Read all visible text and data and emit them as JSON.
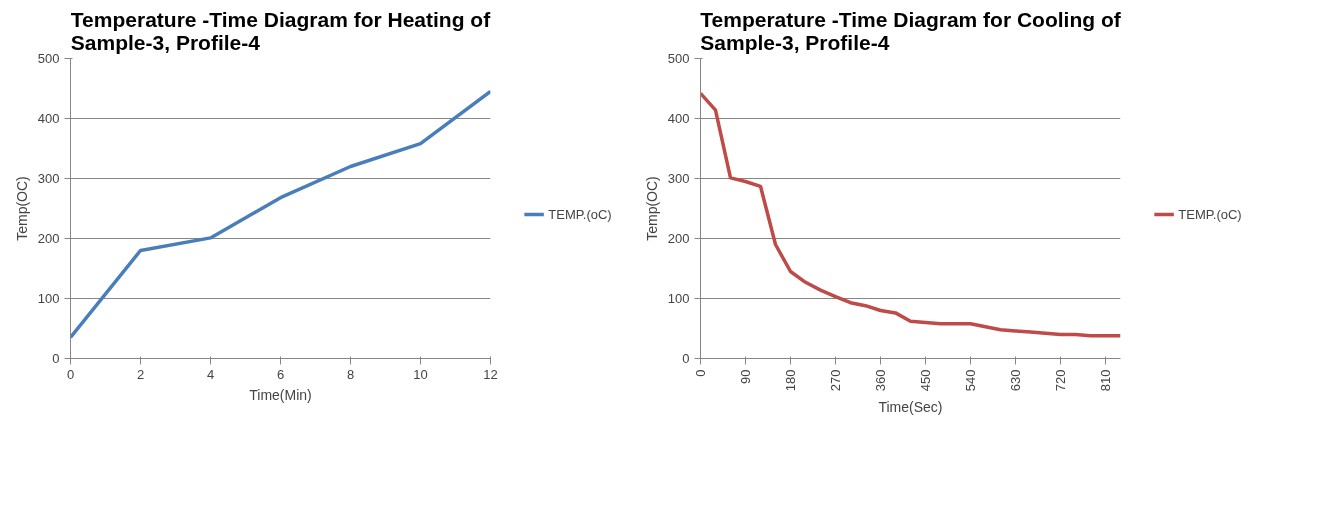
{
  "chart_data": [
    {
      "type": "line",
      "title": "Temperature -Time Diagram for Heating of Sample-3, Profile-4",
      "xlabel": "Time(Min)",
      "ylabel": "Temp(OC)",
      "x": [
        0,
        2,
        4,
        6,
        8,
        10,
        12
      ],
      "series": [
        {
          "name": "TEMP.(oC)",
          "color": "#4a7ebb",
          "values": [
            35,
            180,
            201,
            268,
            320,
            358,
            445
          ]
        }
      ],
      "xlim": [
        0,
        12
      ],
      "xticks": [
        0,
        2,
        4,
        6,
        8,
        10,
        12
      ],
      "ylim": [
        0,
        500
      ],
      "yticks": [
        0,
        100,
        200,
        300,
        400,
        500
      ],
      "grid": "y",
      "legend": "right",
      "marker": "none"
    },
    {
      "type": "line",
      "title": "Temperature -Time Diagram for Cooling of Sample-3, Profile-4",
      "xlabel": "Time(Sec)",
      "ylabel": "Temp(OC)",
      "x": [
        0,
        30,
        60,
        90,
        120,
        150,
        180,
        210,
        240,
        270,
        300,
        330,
        360,
        390,
        420,
        450,
        480,
        510,
        540,
        570,
        600,
        630,
        660,
        690,
        720,
        750,
        780,
        810,
        840
      ],
      "series": [
        {
          "name": "TEMP.(oC)",
          "color": "#be4b48",
          "values": [
            442,
            414,
            301,
            295,
            287,
            190,
            145,
            127,
            114,
            103,
            93,
            88,
            80,
            76,
            62,
            60,
            58,
            58,
            58,
            53,
            48,
            46,
            44,
            42,
            40,
            40,
            38,
            38,
            38
          ]
        }
      ],
      "xlim": [
        0,
        840
      ],
      "xticks": [
        0,
        90,
        180,
        270,
        360,
        450,
        540,
        630,
        720,
        810
      ],
      "ylim": [
        0,
        500
      ],
      "yticks": [
        0,
        100,
        200,
        300,
        400,
        500
      ],
      "grid": "y",
      "legend": "right",
      "marker": "none"
    }
  ]
}
